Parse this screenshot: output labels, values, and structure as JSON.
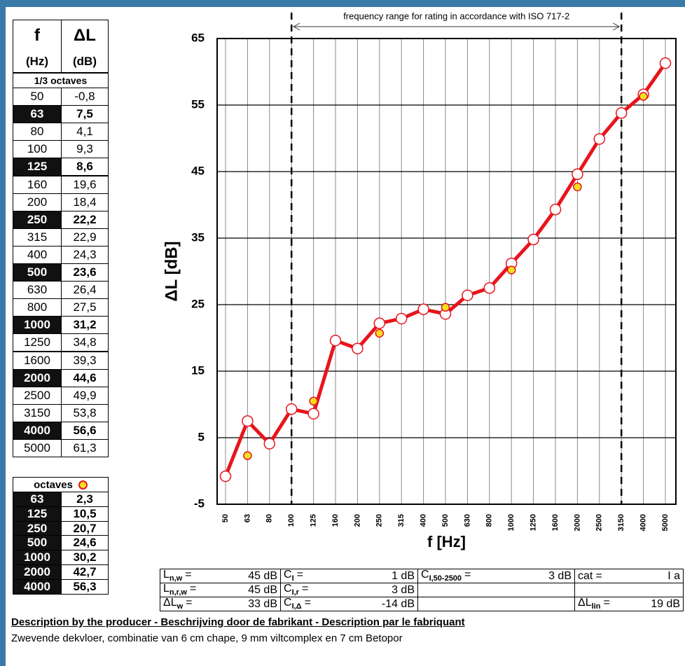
{
  "chart_data": {
    "type": "line",
    "annotation": "frequency range for rating in accordance with ISO 717-2",
    "x_label": "f [Hz]",
    "y_label": "ΔL [dB]",
    "categories": [
      "50",
      "63",
      "80",
      "100",
      "125",
      "160",
      "200",
      "250",
      "315",
      "400",
      "500",
      "630",
      "800",
      "1000",
      "1250",
      "1600",
      "2000",
      "2500",
      "3150",
      "4000",
      "5000"
    ],
    "range_markers": [
      "100",
      "3150"
    ],
    "series": [
      {
        "name": "1/3 octaves",
        "color": "#e8141c",
        "values": [
          -0.8,
          7.5,
          4.1,
          9.3,
          8.6,
          19.6,
          18.4,
          22.2,
          22.9,
          24.3,
          23.6,
          26.4,
          27.5,
          31.2,
          34.8,
          39.3,
          44.6,
          49.9,
          53.8,
          56.6,
          61.3
        ]
      },
      {
        "name": "octaves",
        "color": "#f5e020",
        "values": [
          null,
          2.3,
          null,
          null,
          10.5,
          null,
          null,
          20.7,
          null,
          null,
          24.6,
          null,
          null,
          30.2,
          null,
          null,
          42.7,
          null,
          null,
          56.3,
          null
        ]
      }
    ],
    "ylim": [
      -5,
      65
    ],
    "yticks": [
      -5,
      5,
      15,
      25,
      35,
      45,
      55,
      65
    ],
    "grid": true
  },
  "third_octave_table": {
    "head_f": "f",
    "head_dl": "ΔL",
    "unit_f": "(Hz)",
    "unit_dl": "(dB)",
    "caption": "1/3 octaves",
    "rows": [
      {
        "f": "50",
        "dl": "-0,8",
        "highlight": false
      },
      {
        "f": "63",
        "dl": "7,5",
        "highlight": true
      },
      {
        "f": "80",
        "dl": "4,1",
        "highlight": false
      },
      {
        "f": "100",
        "dl": "9,3",
        "highlight": false
      },
      {
        "f": "125",
        "dl": "8,6",
        "highlight": true
      },
      {
        "f": "160",
        "dl": "19,6",
        "highlight": false
      },
      {
        "f": "200",
        "dl": "18,4",
        "highlight": false
      },
      {
        "f": "250",
        "dl": "22,2",
        "highlight": true
      },
      {
        "f": "315",
        "dl": "22,9",
        "highlight": false
      },
      {
        "f": "400",
        "dl": "24,3",
        "highlight": false
      },
      {
        "f": "500",
        "dl": "23,6",
        "highlight": true
      },
      {
        "f": "630",
        "dl": "26,4",
        "highlight": false
      },
      {
        "f": "800",
        "dl": "27,5",
        "highlight": false
      },
      {
        "f": "1000",
        "dl": "31,2",
        "highlight": true
      },
      {
        "f": "1250",
        "dl": "34,8",
        "highlight": false
      },
      {
        "f": "1600",
        "dl": "39,3",
        "highlight": false
      },
      {
        "f": "2000",
        "dl": "44,6",
        "highlight": true
      },
      {
        "f": "2500",
        "dl": "49,9",
        "highlight": false
      },
      {
        "f": "3150",
        "dl": "53,8",
        "highlight": false
      },
      {
        "f": "4000",
        "dl": "56,6",
        "highlight": true
      },
      {
        "f": "5000",
        "dl": "61,3",
        "highlight": false
      }
    ]
  },
  "octave_table": {
    "caption": "octaves",
    "rows": [
      [
        "63",
        "2,3"
      ],
      [
        "125",
        "10,5"
      ],
      [
        "250",
        "20,7"
      ],
      [
        "500",
        "24,6"
      ],
      [
        "1000",
        "30,2"
      ],
      [
        "2000",
        "42,7"
      ],
      [
        "4000",
        "56,3"
      ]
    ]
  },
  "results_table": {
    "rows": [
      [
        {
          "sym": "L",
          "sub": "n,w",
          "eq": "=",
          "val": "45 dB"
        },
        {
          "sym": "C",
          "sub": "I",
          "eq": "=",
          "val": "1 dB"
        },
        {
          "sym": "C",
          "sub": "I,50-2500",
          "eq": "=",
          "val": "3 dB"
        },
        {
          "sym": "cat",
          "eq": "=",
          "val": "I a"
        }
      ],
      [
        {
          "sym": "L",
          "sub": "n,r,w",
          "eq": "=",
          "val": "45 dB"
        },
        {
          "sym": "C",
          "sub": "I,r",
          "eq": "=",
          "val": "3 dB"
        },
        null,
        null
      ],
      [
        {
          "sym": "ΔL",
          "sub": "w",
          "eq": "=",
          "val": "33 dB"
        },
        {
          "sym": "C",
          "sub": "I,Δ",
          "eq": "=",
          "val": "-14 dB"
        },
        null,
        {
          "sym": "ΔL",
          "sub": "lin",
          "eq": "=",
          "val": "19 dB"
        }
      ]
    ]
  },
  "description": {
    "heading": "Description by the producer - Beschrijving door de fabrikant - Description par le fabriquant",
    "text": "Zwevende dekvloer, combinatie van 6 cm chape, 9 mm viltcomplex en 7 cm Betopor"
  }
}
